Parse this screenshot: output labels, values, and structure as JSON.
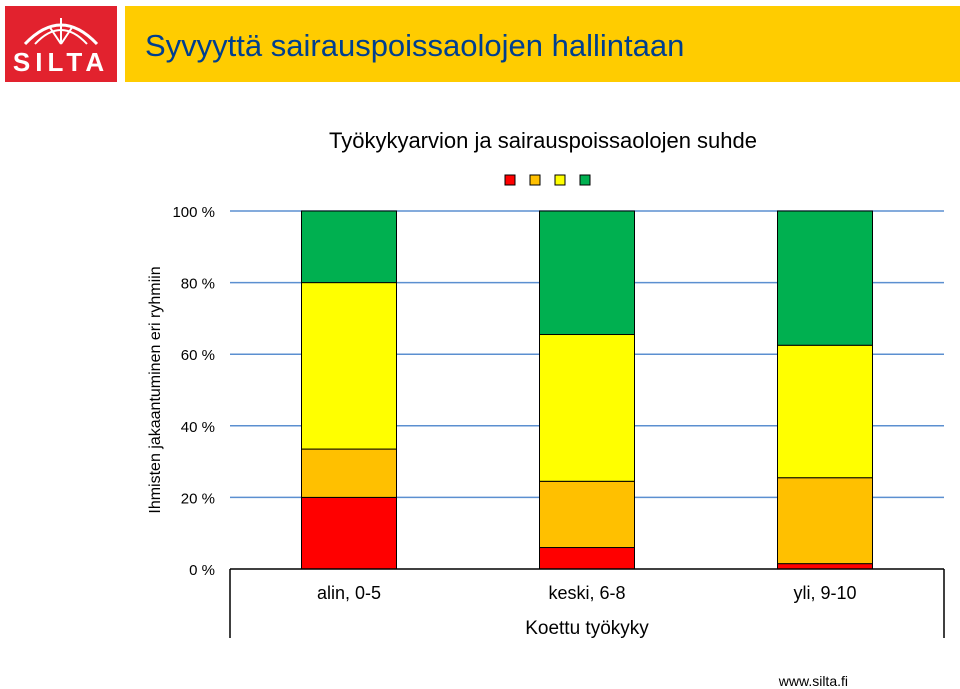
{
  "header": {
    "logo_text": "SILTA",
    "title": "Syvyyttä sairauspoissaolojen hallintaan",
    "brand_color": "#e2222e",
    "banner_color": "#ffcc00"
  },
  "chart_data": {
    "type": "bar",
    "stacked": true,
    "title": "Työkykyarvion ja sairauspoissaolojen suhde",
    "xlabel": "Koettu työkyky",
    "ylabel": "Ihmisten jakaantuminen eri ryhmiin",
    "ylim": [
      0,
      100
    ],
    "yticks": [
      "0 %",
      "20 %",
      "40 %",
      "60 %",
      "80 %",
      "100 %"
    ],
    "categories": [
      "alin, 0-5",
      "keski, 6-8",
      "yli, 9-10"
    ],
    "series": [
      {
        "color": "#ff0000",
        "values": [
          20,
          6,
          1.5
        ]
      },
      {
        "color": "#ffc000",
        "values": [
          13.5,
          18.5,
          24
        ]
      },
      {
        "color": "#ffff00",
        "values": [
          46.5,
          41,
          37
        ]
      },
      {
        "color": "#00b050",
        "values": [
          20,
          34.5,
          37.5
        ]
      }
    ],
    "legend": {
      "position": "top",
      "labels_visible": false
    },
    "grid": true
  },
  "footer": {
    "url": "www.silta.fi"
  }
}
